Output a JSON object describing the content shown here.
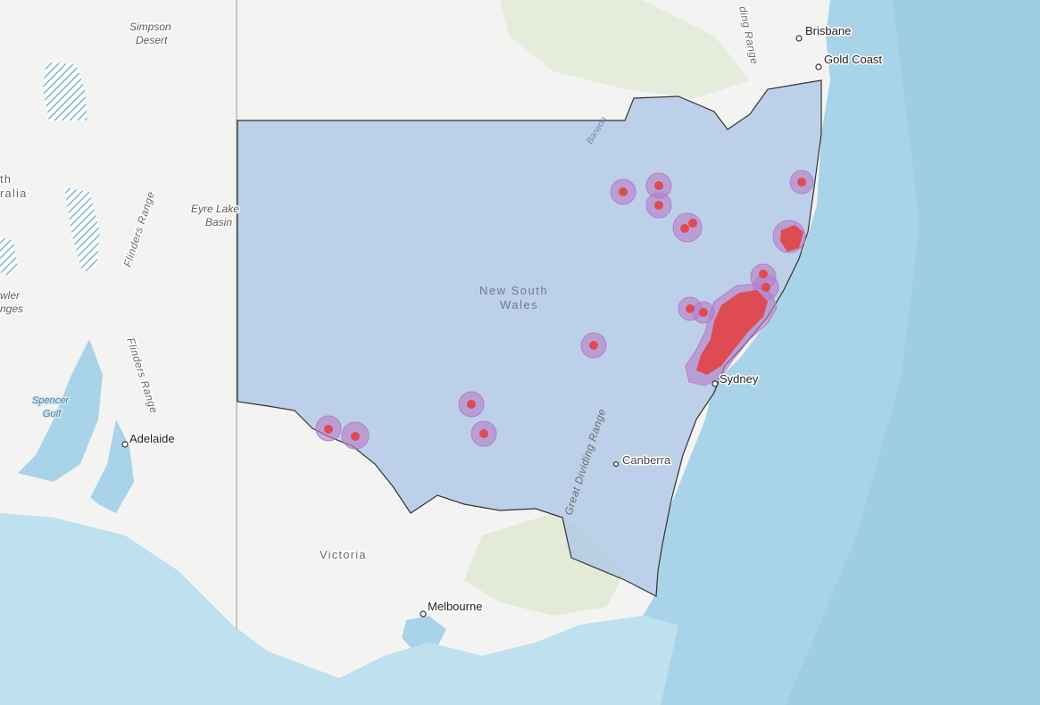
{
  "map": {
    "colors": {
      "ocean": "#a9d3e8",
      "ocean_deep": "#8fc6e0",
      "land": "#f3f4f2",
      "nsw_fill": "#a9c6e6",
      "hotspot_fill": "#e0474c",
      "buffer_fill": "#b77cc7",
      "border": "#444444"
    },
    "labels": {
      "simpson_1": "Simpson",
      "simpson_2": "Desert",
      "eyre_1": "Eyre Lake",
      "eyre_2": "Basin",
      "flinders_1": "Flinders Range",
      "flinders_2": "Flinders Range",
      "sa_1": "th",
      "sa_2": "ralia",
      "gawler_1": "wler",
      "gawler_2": "nges",
      "spencer_1": "Spencer",
      "spencer_2": "Gulf",
      "nsw_1": "New South",
      "nsw_2": "Wales",
      "victoria": "Victoria",
      "barwon": "Barwon",
      "great_dividing": "Great Dividing Range",
      "dividing_top": "ding Range"
    },
    "cities": {
      "brisbane": "Brisbane",
      "gold_coast": "Gold Coast",
      "sydney": "Sydney",
      "canberra": "Canberra",
      "adelaide": "Adelaide",
      "melbourne": "Melbourne"
    },
    "layers": [
      {
        "name": "nsw-boundary",
        "type": "polygon"
      },
      {
        "name": "hotspot-buffers",
        "type": "polygon",
        "count": 16
      },
      {
        "name": "hotspots",
        "type": "polygon"
      }
    ]
  }
}
